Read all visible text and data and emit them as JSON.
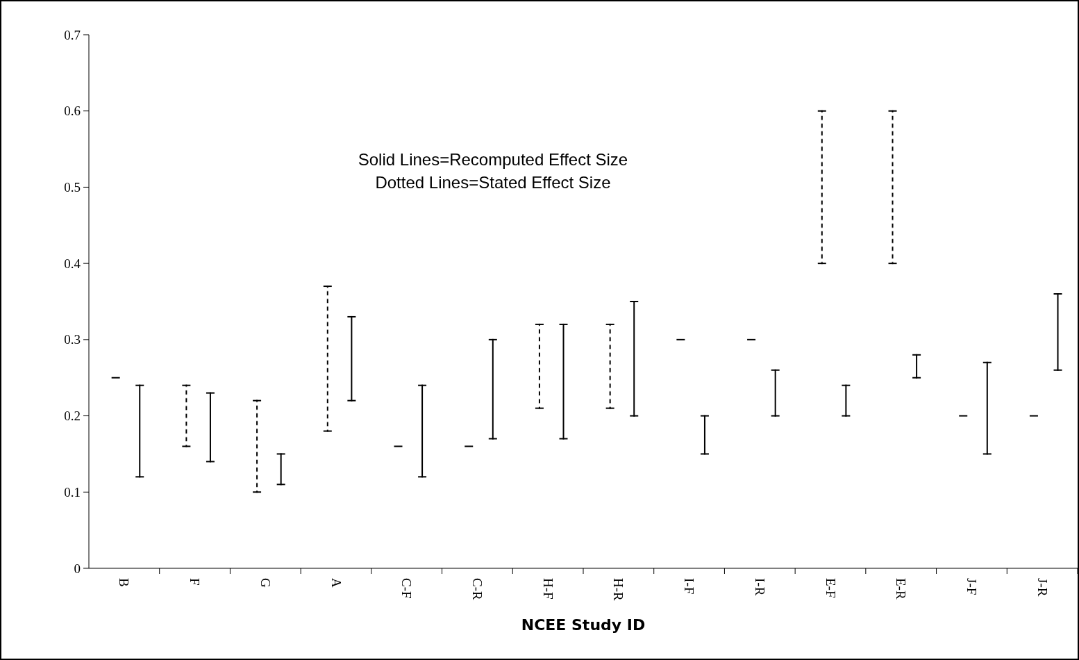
{
  "chart_data": {
    "type": "bar",
    "xlabel": "NCEE Study ID",
    "categories": [
      "B",
      "F",
      "G",
      "A",
      "C-F",
      "C-R",
      "H-F",
      "H-R",
      "I-F",
      "I-R",
      "E-F",
      "E-R",
      "J-F",
      "J-R"
    ],
    "series": [
      {
        "color": "#000000",
        "line_style": "dashed",
        "base": [
          0.25,
          0.16,
          0.1,
          0.18,
          0.16,
          0.16,
          0.21,
          0.21,
          0.3,
          0.3,
          0.4,
          0.4,
          0.2,
          0.2
        ],
        "values": [
          0,
          0.08,
          0.12,
          0.19,
          0,
          0,
          0.11,
          0.11,
          0,
          0,
          0.2,
          0.2,
          0,
          0
        ]
      },
      {
        "color": "#000000",
        "line_style": "solid",
        "base": [
          0.12,
          0.14,
          0.11,
          0.22,
          0.12,
          0.17,
          0.17,
          0.2,
          0.15,
          0.2,
          0.2,
          0.25,
          0.15,
          0.26
        ],
        "values": [
          0.12,
          0.09,
          0.04,
          0.11,
          0.12,
          0.13,
          0.15,
          0.15,
          0.05,
          0.06,
          0.04,
          0.03,
          0.12,
          0.1
        ]
      }
    ],
    "ylim": [
      0,
      0.7
    ],
    "yticks": [
      0,
      0.1,
      0.2,
      0.3,
      0.4,
      0.5,
      0.6,
      0.7
    ],
    "annotations": [
      "Solid Lines=Recomputed Effect Size",
      "Dotted Lines=Stated Effect Size"
    ]
  }
}
